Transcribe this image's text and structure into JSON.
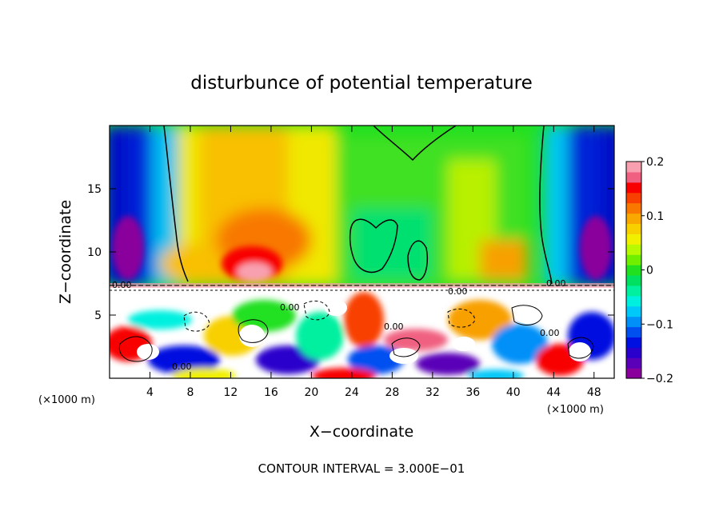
{
  "chart_data": {
    "type": "heatmap",
    "title": "disturbunce of potential temperature",
    "xlabel": "X−coordinate",
    "ylabel": "Z−coordinate",
    "x_unit": "(×1000 m)",
    "x_unit_right": "(×1000 m)",
    "footer": "CONTOUR INTERVAL = 3.000E−01",
    "xlim": [
      0,
      50
    ],
    "ylim": [
      0,
      20
    ],
    "x_ticks": [
      4,
      8,
      12,
      16,
      20,
      24,
      28,
      32,
      36,
      40,
      44,
      48
    ],
    "x_tick_labels": [
      "4",
      "8",
      "12",
      "16",
      "20",
      "24",
      "28",
      "32",
      "36",
      "40",
      "44",
      "48"
    ],
    "y_ticks": [
      5,
      10,
      15
    ],
    "y_tick_labels": [
      "5",
      "10",
      "15"
    ],
    "colorbar": {
      "range": [
        -0.2,
        0.2
      ],
      "tick_values": [
        0.2,
        0.1,
        0,
        -0.1,
        -0.2
      ],
      "tick_labels": [
        "0.2",
        "0.1",
        "0",
        "−0.1",
        "−0.2"
      ],
      "colors": [
        "#8a009c",
        "#5a00b8",
        "#2a00cc",
        "#0010e0",
        "#0050f0",
        "#0090f8",
        "#00c8f8",
        "#00f0e0",
        "#00f0a0",
        "#00e060",
        "#20e020",
        "#70f000",
        "#b8f800",
        "#f0f000",
        "#f8d000",
        "#f8a800",
        "#f87800",
        "#f84000",
        "#f80000",
        "#f06080",
        "#f8a0b0"
      ]
    },
    "contour_labels": [
      "0.00",
      "0.00",
      "0.00",
      "0.00",
      "0.00",
      "0.00",
      "0.00"
    ],
    "field_summary": {
      "upper_layer_z_above_7.2": [
        {
          "region": "x 0-6 (left edge)",
          "value": -0.18
        },
        {
          "region": "x 8-22",
          "value": 0.08
        },
        {
          "region": "x 10-17, z 7.5-10",
          "value": 0.18
        },
        {
          "region": "x 22-44",
          "value": 0.0
        },
        {
          "region": "x 44-50 (right edge)",
          "value": -0.18
        }
      ],
      "lower_layer_z_below_7.2": "turbulent mixed field spanning -0.2 to 0.2 with white masked regions"
    }
  }
}
